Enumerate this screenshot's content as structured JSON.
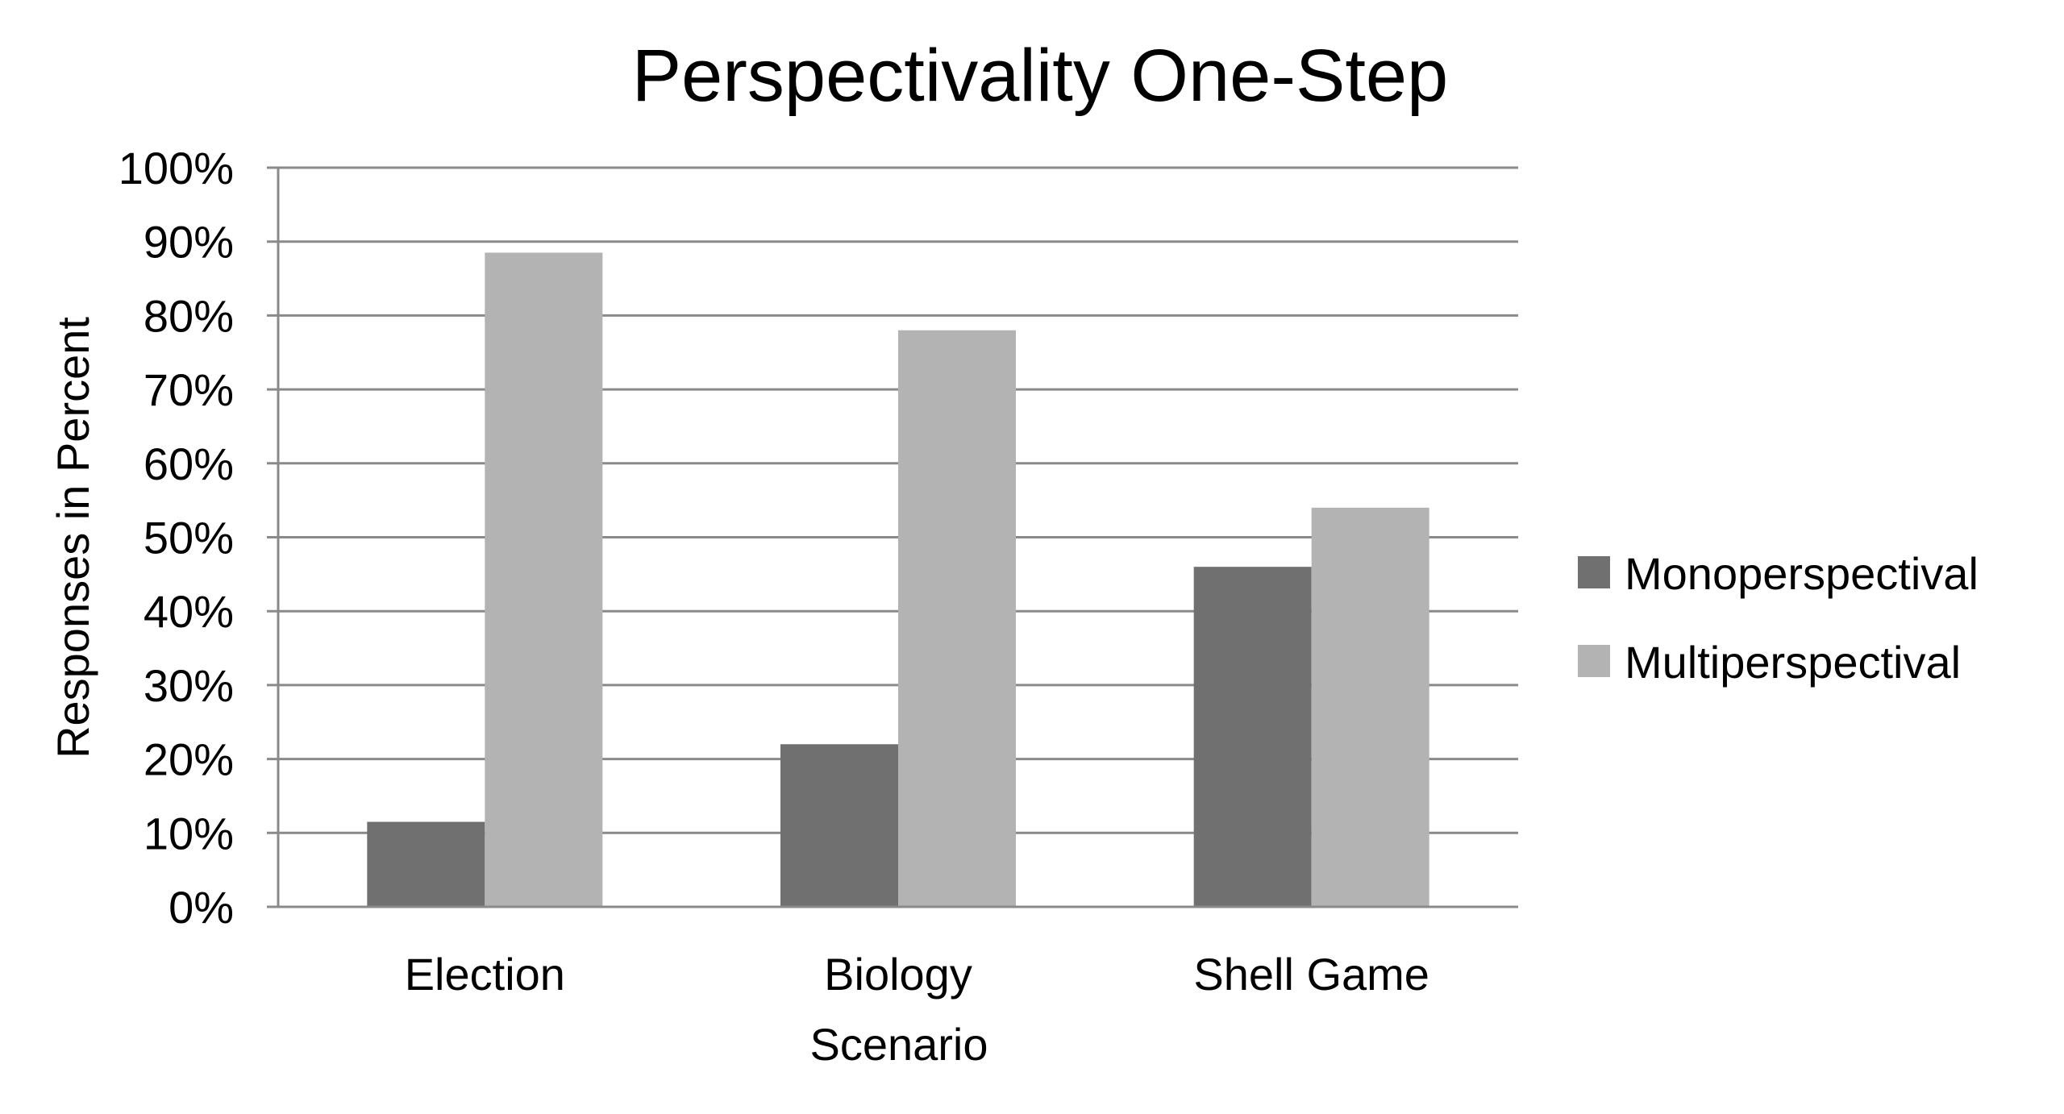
{
  "chart_data": {
    "type": "bar",
    "title": "Perspectivality One-Step",
    "xlabel": "Scenario",
    "ylabel": "Responses in Percent",
    "categories": [
      "Election",
      "Biology",
      "Shell Game"
    ],
    "series": [
      {
        "name": "Monoperspectival",
        "values": [
          11.5,
          22,
          46
        ],
        "color": "#707070"
      },
      {
        "name": "Multiperspectival",
        "values": [
          88.5,
          78,
          54
        ],
        "color": "#b3b3b3"
      }
    ],
    "ylim": [
      0,
      100
    ],
    "yticks": [
      0,
      10,
      20,
      30,
      40,
      50,
      60,
      70,
      80,
      90,
      100
    ],
    "ytick_suffix": "%",
    "grid": true,
    "legend_position": "right"
  }
}
